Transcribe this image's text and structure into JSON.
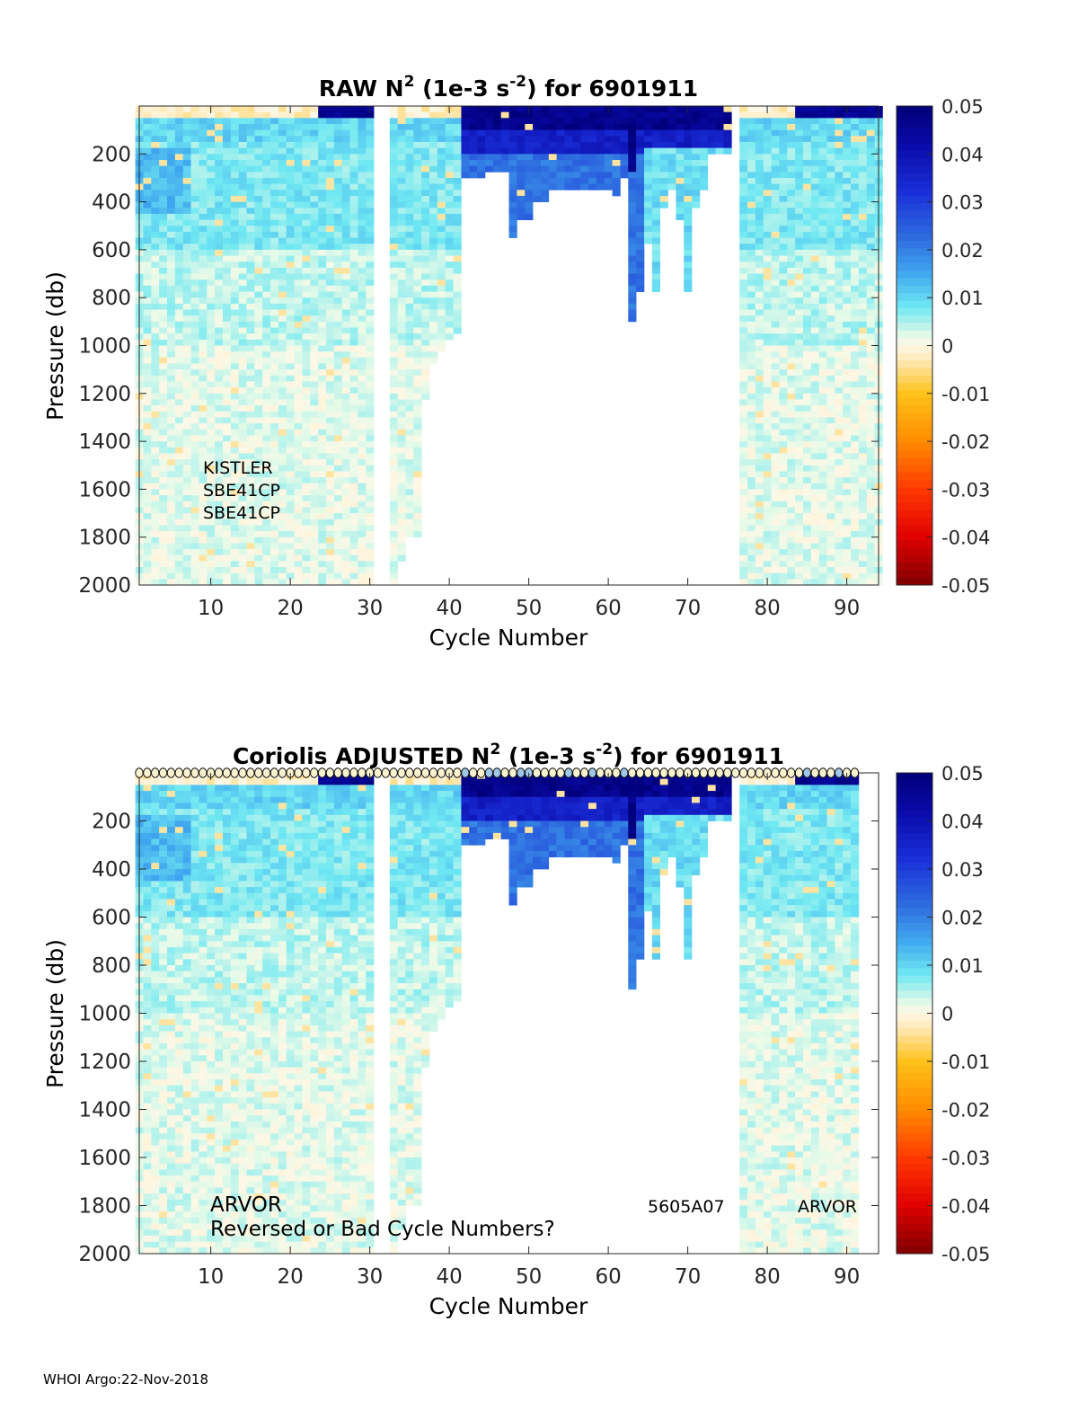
{
  "footer": "WHOI Argo:22-Nov-2018",
  "colormap": {
    "stops": [
      {
        "v": -0.05,
        "c": "#7f0000"
      },
      {
        "v": -0.04,
        "c": "#e00000"
      },
      {
        "v": -0.03,
        "c": "#ff3a00"
      },
      {
        "v": -0.02,
        "c": "#ff8c00"
      },
      {
        "v": -0.01,
        "c": "#ffc21a"
      },
      {
        "v": -0.003,
        "c": "#ffe9b8"
      },
      {
        "v": 0.0,
        "c": "#fff7e6"
      },
      {
        "v": 0.002,
        "c": "#e6fae8"
      },
      {
        "v": 0.008,
        "c": "#6fe8f2"
      },
      {
        "v": 0.015,
        "c": "#40a8ef"
      },
      {
        "v": 0.022,
        "c": "#2f6fe0"
      },
      {
        "v": 0.032,
        "c": "#1a2fd8"
      },
      {
        "v": 0.042,
        "c": "#0a0aa8"
      },
      {
        "v": 0.05,
        "c": "#00007a"
      }
    ]
  },
  "chart_data": [
    {
      "type": "heatmap",
      "id": "raw",
      "title": {
        "pre": "RAW N",
        "sup1": "2",
        "mid": " (1e-3 s",
        "sup2": "-2",
        "post": ") for 6901911"
      },
      "xlabel": "Cycle Number",
      "ylabel": "Pressure (db)",
      "xlim": [
        1,
        94
      ],
      "ylim": [
        0,
        2000
      ],
      "x_ticks": [
        "10",
        "20",
        "30",
        "40",
        "50",
        "60",
        "70",
        "80",
        "90"
      ],
      "y_ticks": [
        "200",
        "400",
        "600",
        "800",
        "1000",
        "1200",
        "1400",
        "1600",
        "1800",
        "2000"
      ],
      "colorbar_ticks": [
        "0.05",
        "0.04",
        "0.03",
        "0.02",
        "0.01",
        "0",
        "-0.01",
        "-0.02",
        "-0.03",
        "-0.04",
        "-0.05"
      ],
      "annotations": [
        "KISTLER",
        "SBE41CP",
        "SBE41CP"
      ],
      "missing_cycles": [
        31,
        32,
        76
      ],
      "profile_max_pressure": [
        {
          "cycles": [
            1,
            30
          ],
          "p": 2000
        },
        {
          "cycles": [
            33,
            33
          ],
          "p": 2000
        },
        {
          "cycles": [
            34,
            34
          ],
          "p": 1880
        },
        {
          "cycles": [
            35,
            36
          ],
          "p": 1800
        },
        {
          "cycles": [
            37,
            37
          ],
          "p": 1220
        },
        {
          "cycles": [
            38,
            38
          ],
          "p": 1060
        },
        {
          "cycles": [
            39,
            39
          ],
          "p": 1010
        },
        {
          "cycles": [
            40,
            40
          ],
          "p": 970
        },
        {
          "cycles": [
            41,
            41
          ],
          "p": 930
        },
        {
          "cycles": [
            42,
            44
          ],
          "p": 280
        },
        {
          "cycles": [
            45,
            47
          ],
          "p": 260
        },
        {
          "cycles": [
            48,
            48
          ],
          "p": 530
        },
        {
          "cycles": [
            49,
            50
          ],
          "p": 460
        },
        {
          "cycles": [
            51,
            52
          ],
          "p": 400
        },
        {
          "cycles": [
            53,
            60
          ],
          "p": 330
        },
        {
          "cycles": [
            61,
            61
          ],
          "p": 360
        },
        {
          "cycles": [
            62,
            62
          ],
          "p": 280
        },
        {
          "cycles": [
            63,
            63
          ],
          "p": 880
        },
        {
          "cycles": [
            64,
            64
          ],
          "p": 760
        },
        {
          "cycles": [
            65,
            65
          ],
          "p": 560
        },
        {
          "cycles": [
            66,
            66
          ],
          "p": 770
        },
        {
          "cycles": [
            67,
            67
          ],
          "p": 420
        },
        {
          "cycles": [
            68,
            68
          ],
          "p": 330
        },
        {
          "cycles": [
            69,
            69
          ],
          "p": 460
        },
        {
          "cycles": [
            70,
            70
          ],
          "p": 760
        },
        {
          "cycles": [
            71,
            71
          ],
          "p": 420
        },
        {
          "cycles": [
            72,
            72
          ],
          "p": 330
        },
        {
          "cycles": [
            73,
            75
          ],
          "p": 200
        },
        {
          "cycles": [
            77,
            94
          ],
          "p": 2000
        }
      ],
      "has_markers": false
    },
    {
      "type": "heatmap",
      "id": "adjusted",
      "title": {
        "pre": "Coriolis  ADJUSTED N",
        "sup1": "2",
        "mid": " (1e-3 s",
        "sup2": "-2",
        "post": ") for 6901911"
      },
      "xlabel": "Cycle Number",
      "ylabel": "Pressure (db)",
      "xlim": [
        1,
        94
      ],
      "ylim": [
        0,
        2000
      ],
      "x_ticks": [
        "10",
        "20",
        "30",
        "40",
        "50",
        "60",
        "70",
        "80",
        "90"
      ],
      "y_ticks": [
        "200",
        "400",
        "600",
        "800",
        "1000",
        "1200",
        "1400",
        "1600",
        "1800",
        "2000"
      ],
      "colorbar_ticks": [
        "0.05",
        "0.04",
        "0.03",
        "0.02",
        "0.01",
        "0",
        "-0.01",
        "-0.02",
        "-0.03",
        "-0.04",
        "-0.05"
      ],
      "annotations_left": [
        "ARVOR",
        "Reversed or Bad Cycle Numbers?"
      ],
      "annotation_mid": "5605A07",
      "annotation_right": "ARVOR",
      "missing_cycles": [
        31,
        32,
        76
      ],
      "profile_max_pressure": [
        {
          "cycles": [
            1,
            30
          ],
          "p": 2000
        },
        {
          "cycles": [
            33,
            33
          ],
          "p": 2000
        },
        {
          "cycles": [
            34,
            34
          ],
          "p": 1880
        },
        {
          "cycles": [
            35,
            36
          ],
          "p": 1800
        },
        {
          "cycles": [
            37,
            37
          ],
          "p": 1220
        },
        {
          "cycles": [
            38,
            38
          ],
          "p": 1060
        },
        {
          "cycles": [
            39,
            39
          ],
          "p": 1010
        },
        {
          "cycles": [
            40,
            40
          ],
          "p": 970
        },
        {
          "cycles": [
            41,
            41
          ],
          "p": 930
        },
        {
          "cycles": [
            42,
            44
          ],
          "p": 280
        },
        {
          "cycles": [
            45,
            47
          ],
          "p": 260
        },
        {
          "cycles": [
            48,
            48
          ],
          "p": 530
        },
        {
          "cycles": [
            49,
            50
          ],
          "p": 460
        },
        {
          "cycles": [
            51,
            52
          ],
          "p": 400
        },
        {
          "cycles": [
            53,
            60
          ],
          "p": 330
        },
        {
          "cycles": [
            61,
            61
          ],
          "p": 360
        },
        {
          "cycles": [
            62,
            62
          ],
          "p": 280
        },
        {
          "cycles": [
            63,
            63
          ],
          "p": 880
        },
        {
          "cycles": [
            64,
            64
          ],
          "p": 760
        },
        {
          "cycles": [
            65,
            65
          ],
          "p": 560
        },
        {
          "cycles": [
            66,
            66
          ],
          "p": 770
        },
        {
          "cycles": [
            67,
            67
          ],
          "p": 420
        },
        {
          "cycles": [
            68,
            68
          ],
          "p": 330
        },
        {
          "cycles": [
            69,
            69
          ],
          "p": 460
        },
        {
          "cycles": [
            70,
            70
          ],
          "p": 760
        },
        {
          "cycles": [
            71,
            71
          ],
          "p": 420
        },
        {
          "cycles": [
            72,
            72
          ],
          "p": 330
        },
        {
          "cycles": [
            73,
            75
          ],
          "p": 200
        },
        {
          "cycles": [
            77,
            91
          ],
          "p": 2000
        }
      ],
      "has_markers": true,
      "marker_cycles": [
        1,
        91
      ]
    }
  ]
}
